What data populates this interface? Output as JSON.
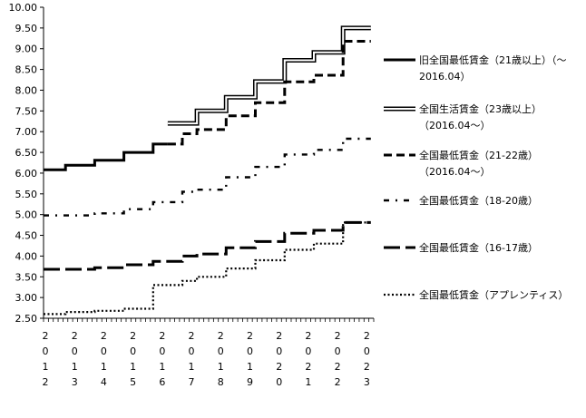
{
  "chart_data": {
    "type": "line",
    "grid": false,
    "legend_position": "right",
    "ylim": [
      2.5,
      10.0
    ],
    "y_ticks": [
      "2.50",
      "3.00",
      "3.50",
      "4.00",
      "4.50",
      "5.00",
      "5.50",
      "6.00",
      "6.50",
      "7.00",
      "7.50",
      "8.00",
      "8.50",
      "9.00",
      "9.50",
      "10.00"
    ],
    "x_ticks": [
      {
        "year": 2012,
        "label": [
          "2",
          "0",
          "1",
          "2"
        ]
      },
      {
        "year": 2013,
        "label": [
          "2",
          "0",
          "1",
          "3"
        ]
      },
      {
        "year": 2014,
        "label": [
          "2",
          "0",
          "1",
          "4"
        ]
      },
      {
        "year": 2015,
        "label": [
          "2",
          "0",
          "1",
          "5"
        ]
      },
      {
        "year": 2016,
        "label": [
          "2",
          "0",
          "1",
          "6"
        ]
      },
      {
        "year": 2017,
        "label": [
          "2",
          "0",
          "1",
          "7"
        ]
      },
      {
        "year": 2018,
        "label": [
          "2",
          "0",
          "1",
          "8"
        ]
      },
      {
        "year": 2019,
        "label": [
          "2",
          "0",
          "1",
          "9"
        ]
      },
      {
        "year": 2020,
        "label": [
          "2",
          "0",
          "2",
          "0"
        ]
      },
      {
        "year": 2021,
        "label": [
          "2",
          "0",
          "2",
          "1"
        ]
      },
      {
        "year": 2022,
        "label": [
          "2",
          "0",
          "2",
          "2"
        ]
      },
      {
        "year": 2023,
        "label": [
          "2",
          "0",
          "2",
          "3"
        ]
      }
    ],
    "xlim": [
      2012.0,
      2023.3
    ],
    "series": [
      {
        "name": "旧全国最低賃金（21歳以上）（～2016.04）",
        "name_lines": [
          "旧全国最低賃金（21歳以上）（～",
          "2016.04）"
        ],
        "style": "solid",
        "color": "#000000",
        "points": [
          [
            2012.0,
            6.08
          ],
          [
            2012.75,
            6.19
          ],
          [
            2013.75,
            6.31
          ],
          [
            2014.75,
            6.5
          ],
          [
            2015.75,
            6.7
          ],
          [
            2016.25,
            6.7
          ]
        ]
      },
      {
        "name": "全国生活賃金（23歳以上）（2016.04～）",
        "name_lines": [
          "全国生活賃金（23歳以上）",
          "（2016.04～）"
        ],
        "style": "double",
        "color": "#000000",
        "points": [
          [
            2016.25,
            7.2
          ],
          [
            2017.25,
            7.5
          ],
          [
            2018.25,
            7.83
          ],
          [
            2019.25,
            8.21
          ],
          [
            2020.25,
            8.72
          ],
          [
            2021.25,
            8.91
          ],
          [
            2022.25,
            9.5
          ],
          [
            2023.2,
            9.5
          ]
        ]
      },
      {
        "name": "全国最低賃金（21-22歳）（2016.04～）",
        "name_lines": [
          "全国最低賃金（21-22歳）",
          "（2016.04～）"
        ],
        "style": "dashed",
        "color": "#000000",
        "points": [
          [
            2016.25,
            6.7
          ],
          [
            2016.75,
            6.95
          ],
          [
            2017.25,
            7.05
          ],
          [
            2018.25,
            7.38
          ],
          [
            2019.25,
            7.7
          ],
          [
            2020.25,
            8.2
          ],
          [
            2021.25,
            8.36
          ],
          [
            2022.25,
            9.18
          ],
          [
            2023.2,
            9.18
          ]
        ]
      },
      {
        "name": "全国最低賃金（18-20歳）",
        "name_lines": [
          "全国最低賃金（18-20歳）"
        ],
        "style": "dashdot",
        "color": "#000000",
        "points": [
          [
            2012.0,
            4.98
          ],
          [
            2012.75,
            4.98
          ],
          [
            2013.75,
            5.03
          ],
          [
            2014.75,
            5.13
          ],
          [
            2015.75,
            5.3
          ],
          [
            2016.75,
            5.55
          ],
          [
            2017.25,
            5.6
          ],
          [
            2018.25,
            5.9
          ],
          [
            2019.25,
            6.15
          ],
          [
            2020.25,
            6.45
          ],
          [
            2021.25,
            6.56
          ],
          [
            2022.25,
            6.83
          ],
          [
            2023.2,
            6.83
          ]
        ]
      },
      {
        "name": "全国最低賃金（16-17歳）",
        "name_lines": [
          "全国最低賃金（16-17歳）"
        ],
        "style": "longdash",
        "color": "#000000",
        "points": [
          [
            2012.0,
            3.68
          ],
          [
            2012.75,
            3.68
          ],
          [
            2013.75,
            3.72
          ],
          [
            2014.75,
            3.79
          ],
          [
            2015.75,
            3.87
          ],
          [
            2016.75,
            4.0
          ],
          [
            2017.25,
            4.05
          ],
          [
            2018.25,
            4.2
          ],
          [
            2019.25,
            4.35
          ],
          [
            2020.25,
            4.55
          ],
          [
            2021.25,
            4.62
          ],
          [
            2022.25,
            4.81
          ],
          [
            2023.2,
            4.81
          ]
        ]
      },
      {
        "name": "全国最低賃金（アプレンティス）",
        "name_lines": [
          "全国最低賃金（アプレンティス）"
        ],
        "style": "dotted",
        "color": "#000000",
        "points": [
          [
            2012.0,
            2.6
          ],
          [
            2012.75,
            2.65
          ],
          [
            2013.75,
            2.68
          ],
          [
            2014.75,
            2.73
          ],
          [
            2015.75,
            3.3
          ],
          [
            2016.75,
            3.4
          ],
          [
            2017.25,
            3.5
          ],
          [
            2018.25,
            3.7
          ],
          [
            2019.25,
            3.9
          ],
          [
            2020.25,
            4.15
          ],
          [
            2021.25,
            4.3
          ],
          [
            2022.25,
            4.81
          ],
          [
            2023.2,
            4.81
          ]
        ]
      }
    ]
  }
}
